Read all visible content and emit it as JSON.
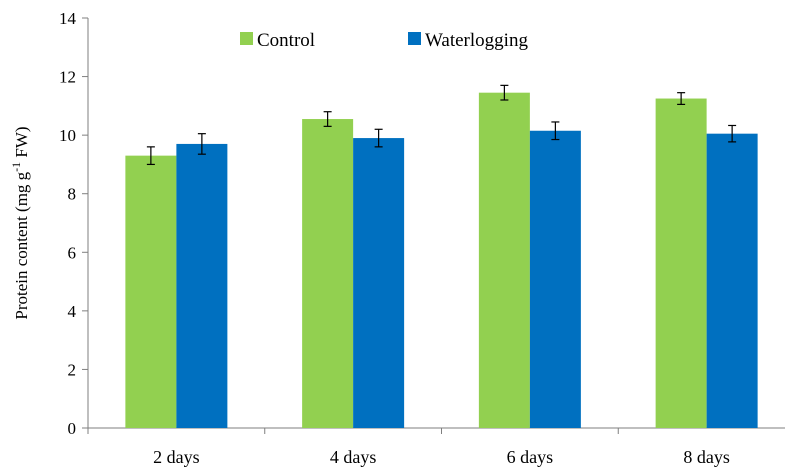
{
  "chart_data": {
    "type": "bar",
    "title": "",
    "xlabel": "",
    "ylabel": {
      "prefix": "Protein content (mg g",
      "superscript": "-1",
      "suffix": " FW)"
    },
    "ylim": [
      0,
      14
    ],
    "yticks": [
      "0",
      "2",
      "4",
      "6",
      "8",
      "10",
      "12",
      "14"
    ],
    "grid": false,
    "legend_position": "top",
    "categories": [
      "2 days",
      "4 days",
      "6 days",
      "8 days"
    ],
    "series": [
      {
        "name": "Control",
        "color": "#92D050",
        "values": [
          9.3,
          10.55,
          11.45,
          11.25
        ],
        "errors": [
          0.3,
          0.25,
          0.25,
          0.2
        ]
      },
      {
        "name": "Waterlogging",
        "color": "#0070C0",
        "values": [
          9.7,
          9.9,
          10.15,
          10.05
        ],
        "errors": [
          0.35,
          0.3,
          0.3,
          0.28
        ]
      }
    ]
  }
}
